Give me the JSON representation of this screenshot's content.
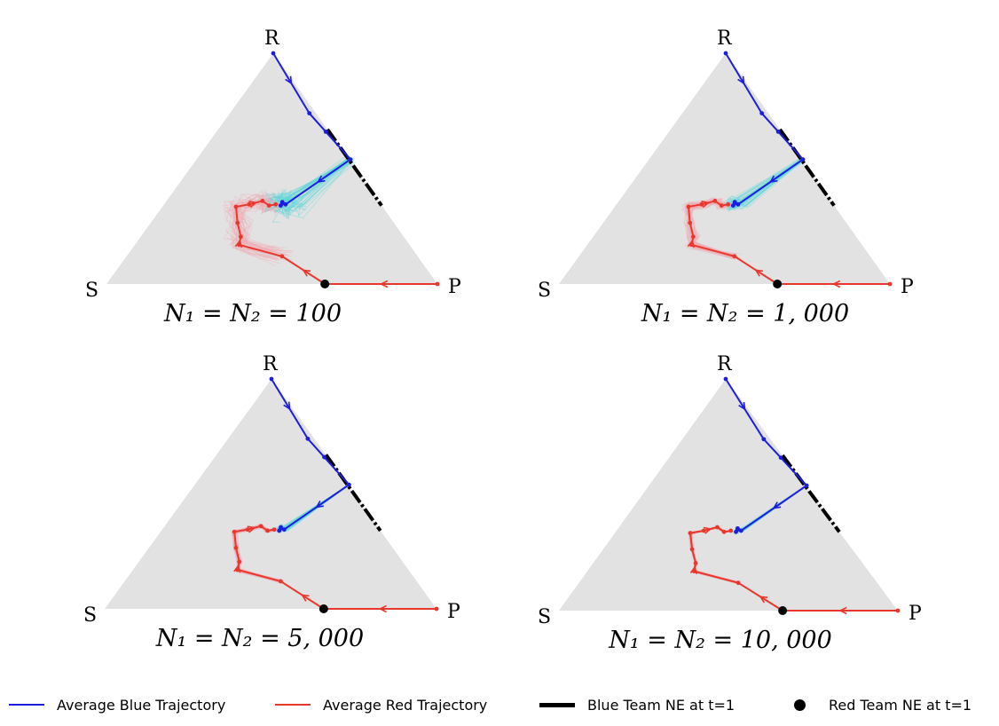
{
  "panels": [
    {
      "caption": "N₁ = N₂ = 100",
      "vertex_top": "R",
      "vertex_left": "S",
      "vertex_right": "P",
      "spread": 1.0
    },
    {
      "caption": "N₁ = N₂ = 1, 000",
      "vertex_top": "R",
      "vertex_left": "S",
      "vertex_right": "P",
      "spread": 0.45
    },
    {
      "caption": "N₁ = N₂ = 5, 000",
      "vertex_top": "R",
      "vertex_left": "S",
      "vertex_right": "P",
      "spread": 0.2
    },
    {
      "caption": "N₁ = N₂ = 10, 000",
      "vertex_top": "R",
      "vertex_left": "S",
      "vertex_right": "P",
      "spread": 0.12
    }
  ],
  "legend": {
    "blue_avg": "Average Blue Trajectory",
    "red_avg": "Average Red Trajectory",
    "blue_ne": "Blue Team NE at t=1",
    "red_ne": "Red Team NE at t=1"
  },
  "colors": {
    "simplex": "#e2e2e2",
    "blue": "#1d1de0",
    "red": "#e8382e",
    "cyan": "#4fd3d6",
    "pink": "#f2a0a8",
    "black": "#000000"
  }
}
